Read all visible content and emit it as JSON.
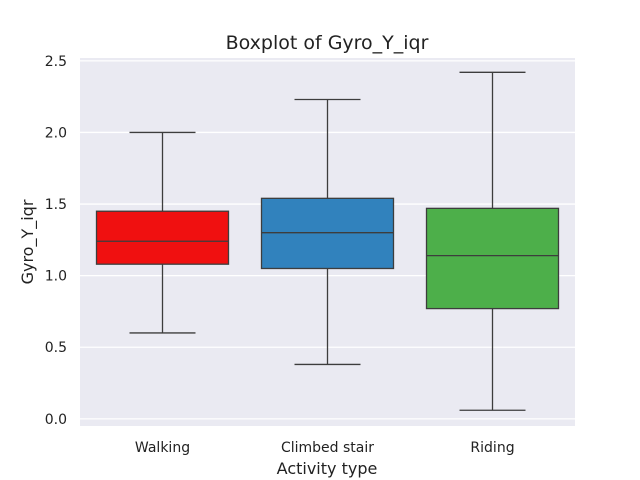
{
  "chart_data": {
    "type": "box",
    "title": "Boxplot of Gyro_Y_iqr",
    "xlabel": "Activity type",
    "ylabel": "Gyro_Y_iqr",
    "ylim": [
      -0.05,
      2.52
    ],
    "yticks": [
      "0.0",
      "0.5",
      "1.0",
      "1.5",
      "2.0",
      "2.5"
    ],
    "categories": [
      "Walking",
      "Climbed stair",
      "Riding"
    ],
    "boxes": [
      {
        "category": "Walking",
        "whisker_low": 0.6,
        "q1": 1.08,
        "median": 1.24,
        "q3": 1.45,
        "whisker_high": 2.0,
        "color": "#f01010"
      },
      {
        "category": "Climbed stair",
        "whisker_low": 0.38,
        "q1": 1.05,
        "median": 1.3,
        "q3": 1.54,
        "whisker_high": 2.23,
        "color": "#3182bd"
      },
      {
        "category": "Riding",
        "whisker_low": 0.06,
        "q1": 0.77,
        "median": 1.14,
        "q3": 1.47,
        "whisker_high": 2.42,
        "color": "#4daf4a"
      }
    ],
    "grid": true,
    "background": "#eaeaf2"
  }
}
